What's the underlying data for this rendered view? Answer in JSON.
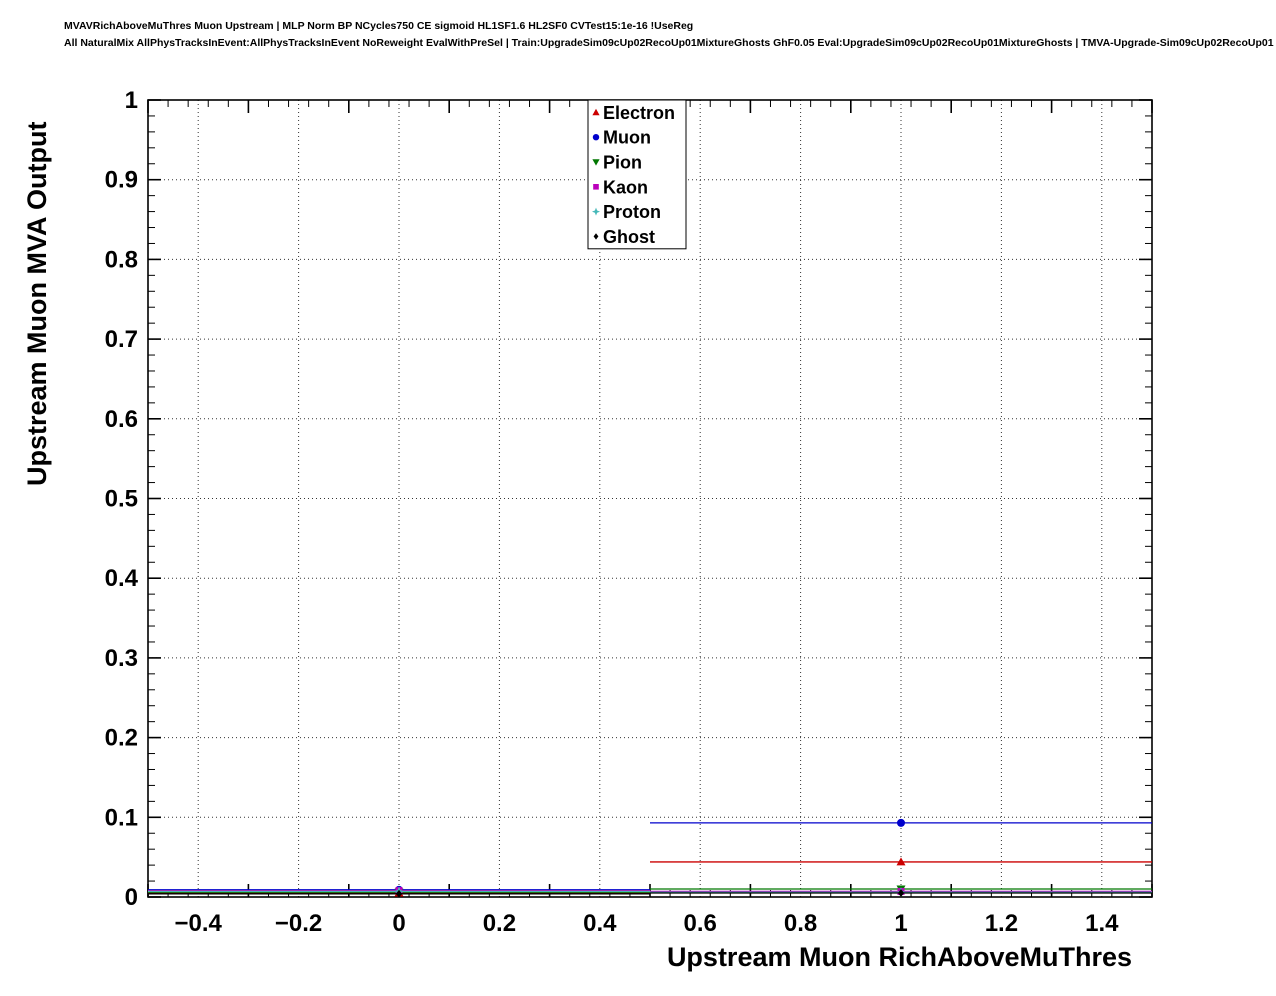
{
  "header": {
    "line1": "MVAVRichAboveMuThres Muon Upstream | MLP Norm BP NCycles750 CE sigmoid HL1SF1.6 HL2SF0 CVTest15:1e-16 !UseReg",
    "line2": "All NaturalMix AllPhysTracksInEvent:AllPhysTracksInEvent NoReweight EvalWithPreSel | Train:UpgradeSim09cUp02RecoUp01MixtureGhosts GhF0.05 Eval:UpgradeSim09cUp02RecoUp01MixtureGhosts | TMVA-Upgrade-Sim09cUp02RecoUp01"
  },
  "chart_data": {
    "type": "scatter",
    "title": "",
    "xlabel": "Upstream Muon RichAboveMuThres",
    "ylabel": "Upstream Muon MVA Output",
    "xlim": [
      -0.5,
      1.5
    ],
    "ylim": [
      0,
      1
    ],
    "x_tick_values": [
      -0.4,
      -0.2,
      0,
      0.2,
      0.4,
      0.6,
      0.8,
      1,
      1.2,
      1.4
    ],
    "x_tick_labels": [
      "−0.4",
      "−0.2",
      "0",
      "0.2",
      "0.4",
      "0.6",
      "0.8",
      "1",
      "1.2",
      "1.4"
    ],
    "y_tick_values": [
      0,
      0.1,
      0.2,
      0.3,
      0.4,
      0.5,
      0.6,
      0.7,
      0.8,
      0.9,
      1
    ],
    "y_tick_labels": [
      "0",
      "0.1",
      "0.2",
      "0.3",
      "0.4",
      "0.5",
      "0.6",
      "0.7",
      "0.8",
      "0.9",
      "1"
    ],
    "grid": "dotted",
    "legend": {
      "position": "top-center",
      "entries": [
        "Electron",
        "Muon",
        "Pion",
        "Kaon",
        "Proton",
        "Ghost"
      ]
    },
    "series": [
      {
        "name": "Electron",
        "color": "#cc0000",
        "marker": "triangle-up",
        "points": [
          {
            "x": 0,
            "y": 0.005,
            "xlow": -0.5,
            "xhigh": 0.5
          },
          {
            "x": 1,
            "y": 0.044,
            "xlow": 0.5,
            "xhigh": 1.5
          }
        ]
      },
      {
        "name": "Muon",
        "color": "#0000cc",
        "marker": "circle",
        "points": [
          {
            "x": 0,
            "y": 0.009,
            "xlow": -0.5,
            "xhigh": 0.5
          },
          {
            "x": 1,
            "y": 0.093,
            "xlow": 0.5,
            "xhigh": 1.5
          }
        ]
      },
      {
        "name": "Pion",
        "color": "#007700",
        "marker": "triangle-down",
        "points": [
          {
            "x": 0,
            "y": 0.006,
            "xlow": -0.5,
            "xhigh": 0.5
          },
          {
            "x": 1,
            "y": 0.01,
            "xlow": 0.5,
            "xhigh": 1.5
          }
        ]
      },
      {
        "name": "Kaon",
        "color": "#bb00bb",
        "marker": "square",
        "points": [
          {
            "x": 0,
            "y": 0.008,
            "xlow": -0.5,
            "xhigh": 0.5
          },
          {
            "x": 1,
            "y": 0.007,
            "xlow": 0.5,
            "xhigh": 1.5
          }
        ]
      },
      {
        "name": "Proton",
        "color": "#45b8b8",
        "marker": "star",
        "points": [
          {
            "x": 0,
            "y": 0.007,
            "xlow": -0.5,
            "xhigh": 0.5
          },
          {
            "x": 1,
            "y": 0.006,
            "xlow": 0.5,
            "xhigh": 1.5
          }
        ]
      },
      {
        "name": "Ghost",
        "color": "#000000",
        "marker": "diamond",
        "points": [
          {
            "x": 0,
            "y": 0.004,
            "xlow": -0.5,
            "xhigh": 0.5
          },
          {
            "x": 1,
            "y": 0.005,
            "xlow": 0.5,
            "xhigh": 1.5
          }
        ]
      }
    ]
  }
}
